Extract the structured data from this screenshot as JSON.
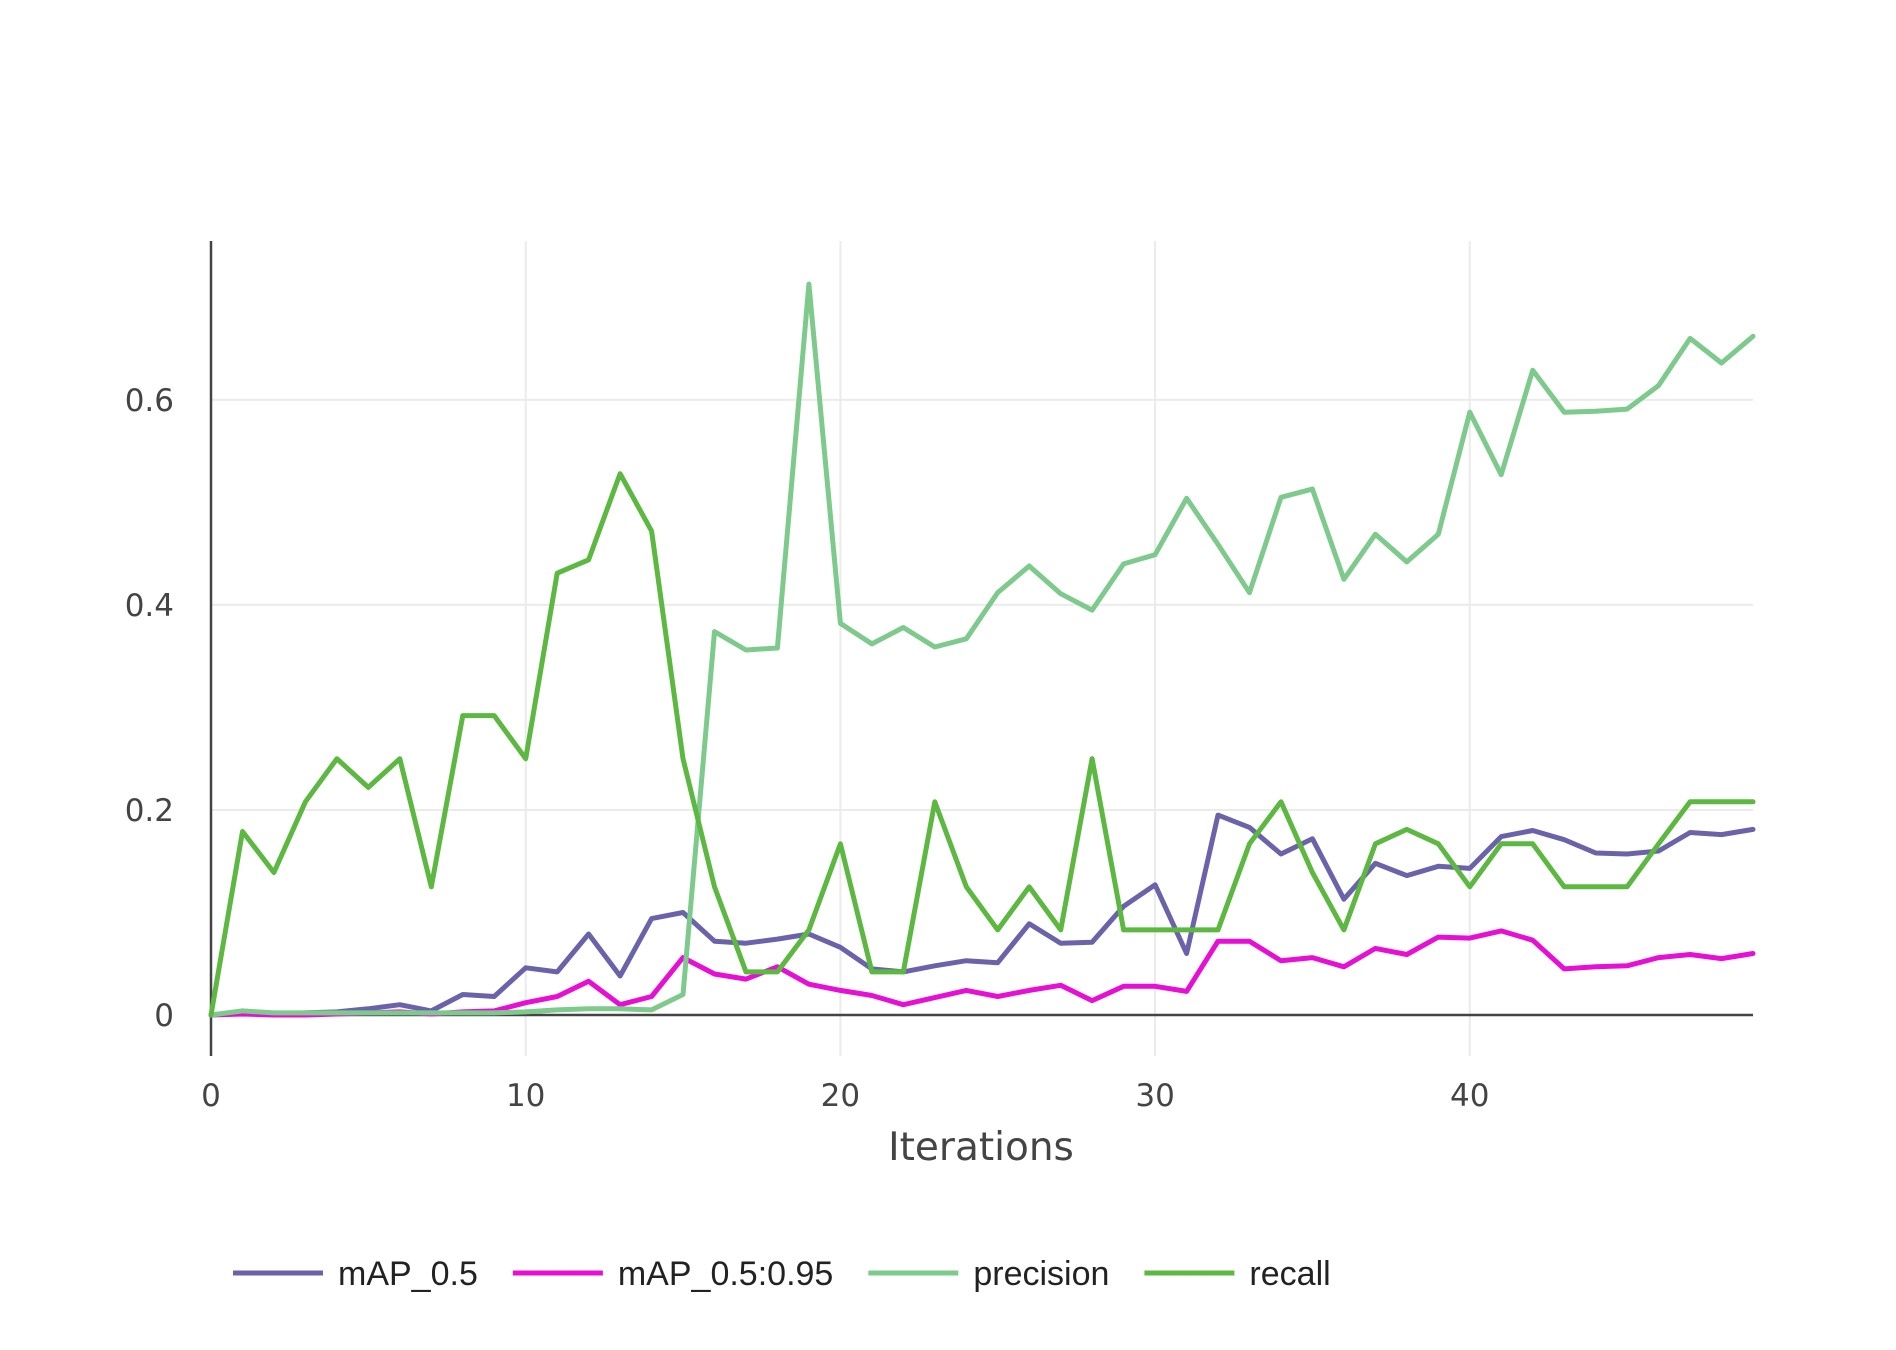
{
  "chart_data": {
    "type": "line",
    "title": "",
    "xlabel": "Iterations",
    "ylabel": "",
    "xlim": [
      0,
      49
    ],
    "ylim": [
      -0.04,
      0.755
    ],
    "x_ticks": [
      0,
      10,
      20,
      30,
      40
    ],
    "x_tick_labels": [
      "0",
      "10",
      "20",
      "30",
      "40"
    ],
    "y_ticks": [
      0,
      0.2,
      0.4,
      0.6
    ],
    "y_tick_labels": [
      "0",
      "0.2",
      "0.4",
      "0.6"
    ],
    "grid": true,
    "legend_position": "bottom",
    "x": [
      0,
      1,
      2,
      3,
      4,
      5,
      6,
      7,
      8,
      9,
      10,
      11,
      12,
      13,
      14,
      15,
      16,
      17,
      18,
      19,
      20,
      21,
      22,
      23,
      24,
      25,
      26,
      27,
      28,
      29,
      30,
      31,
      32,
      33,
      34,
      35,
      36,
      37,
      38,
      39,
      40,
      41,
      42,
      43,
      44,
      45,
      46,
      47,
      48,
      49
    ],
    "series": [
      {
        "name": "mAP_0.5",
        "color": "#6b63aa",
        "values": [
          0.0,
          0.003,
          0.001,
          0.002,
          0.003,
          0.006,
          0.01,
          0.004,
          0.02,
          0.018,
          0.046,
          0.042,
          0.079,
          0.038,
          0.094,
          0.1,
          0.072,
          0.07,
          0.074,
          0.079,
          0.066,
          0.045,
          0.042,
          0.048,
          0.053,
          0.051,
          0.089,
          0.07,
          0.071,
          0.106,
          0.127,
          0.06,
          0.195,
          0.183,
          0.157,
          0.172,
          0.113,
          0.148,
          0.136,
          0.145,
          0.143,
          0.174,
          0.18,
          0.171,
          0.158,
          0.157,
          0.16,
          0.178,
          0.176,
          0.181
        ]
      },
      {
        "name": "mAP_0.5:0.95",
        "color": "#e60fd3",
        "values": [
          0.0,
          0.001,
          0.0,
          0.0,
          0.001,
          0.002,
          0.003,
          0.001,
          0.003,
          0.004,
          0.012,
          0.018,
          0.033,
          0.01,
          0.018,
          0.056,
          0.04,
          0.035,
          0.047,
          0.03,
          0.024,
          0.019,
          0.01,
          0.017,
          0.024,
          0.018,
          0.024,
          0.029,
          0.014,
          0.028,
          0.028,
          0.023,
          0.072,
          0.072,
          0.053,
          0.056,
          0.047,
          0.065,
          0.059,
          0.076,
          0.075,
          0.082,
          0.073,
          0.045,
          0.047,
          0.048,
          0.056,
          0.059,
          0.055,
          0.06
        ]
      },
      {
        "name": "precision",
        "color": "#7dca8c",
        "values": [
          0.0,
          0.004,
          0.002,
          0.002,
          0.002,
          0.002,
          0.002,
          0.002,
          0.002,
          0.002,
          0.003,
          0.005,
          0.006,
          0.006,
          0.005,
          0.02,
          0.374,
          0.356,
          0.358,
          0.713,
          0.382,
          0.362,
          0.378,
          0.359,
          0.367,
          0.412,
          0.438,
          0.411,
          0.395,
          0.44,
          0.449,
          0.504,
          0.459,
          0.412,
          0.505,
          0.513,
          0.425,
          0.469,
          0.442,
          0.469,
          0.588,
          0.527,
          0.629,
          0.588,
          0.589,
          0.591,
          0.614,
          0.66,
          0.636,
          0.662
        ]
      },
      {
        "name": "recall",
        "color": "#5db841",
        "values": [
          0.0,
          0.179,
          0.139,
          0.208,
          0.25,
          0.222,
          0.25,
          0.125,
          0.292,
          0.292,
          0.25,
          0.431,
          0.444,
          0.528,
          0.472,
          0.25,
          0.125,
          0.042,
          0.042,
          0.083,
          0.167,
          0.042,
          0.042,
          0.208,
          0.125,
          0.083,
          0.125,
          0.083,
          0.25,
          0.083,
          0.083,
          0.083,
          0.083,
          0.167,
          0.208,
          0.139,
          0.083,
          0.167,
          0.181,
          0.167,
          0.125,
          0.167,
          0.167,
          0.125,
          0.125,
          0.125,
          0.167,
          0.208,
          0.208,
          0.208
        ]
      }
    ]
  }
}
